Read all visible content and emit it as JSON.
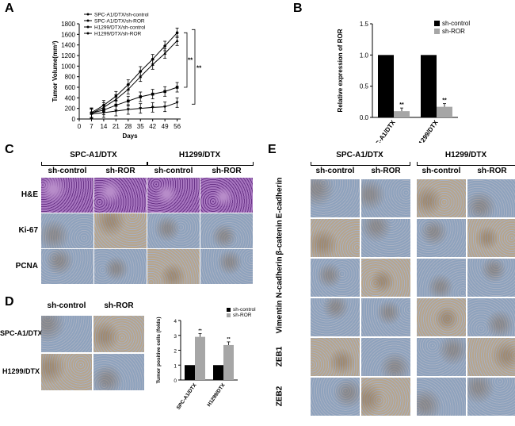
{
  "panels": {
    "A": {
      "label": "A",
      "chart_data": {
        "type": "line",
        "xlabel": "Days",
        "ylabel": "Tumor Volume(mm³)",
        "x": [
          7,
          14,
          21,
          28,
          35,
          42,
          49,
          56
        ],
        "xticks": [
          "0",
          "7",
          "14",
          "21",
          "28",
          "35",
          "42",
          "49",
          "56"
        ],
        "yticks": [
          "0",
          "200",
          "400",
          "600",
          "800",
          "1000",
          "1200",
          "1400",
          "1600",
          "1800"
        ],
        "xlim": [
          0,
          58
        ],
        "ylim": [
          0,
          1800
        ],
        "series": [
          {
            "name": "SPC-A1/DTX/sh-control",
            "values": [
              120,
              260,
              430,
              650,
              900,
              1130,
              1380,
              1630
            ]
          },
          {
            "name": "SPC-A1/DTX/sh-ROR",
            "values": [
              110,
              170,
              260,
              340,
              420,
              470,
              520,
              600
            ]
          },
          {
            "name": "H1299/DTX/sh-control",
            "values": [
              105,
              220,
              370,
              560,
              800,
              1030,
              1240,
              1480
            ]
          },
          {
            "name": "H1299/DTX/sh-ROR",
            "values": [
              95,
              120,
              150,
              180,
              200,
              220,
              230,
              310
            ]
          }
        ],
        "annotations": [
          "**",
          "**"
        ]
      }
    },
    "B": {
      "label": "B",
      "chart_data": {
        "type": "bar",
        "ylabel": "Relative expression of ROR",
        "categories": [
          "SPC-A1/DTX",
          "H1299/DTX"
        ],
        "yticks": [
          "0.0",
          "0.5",
          "1.0",
          "1.5"
        ],
        "ylim": [
          0,
          1.5
        ],
        "series": [
          {
            "name": "sh-control",
            "values": [
              1.0,
              1.0
            ],
            "color": "#000000"
          },
          {
            "name": "sh-ROR",
            "values": [
              0.1,
              0.17
            ],
            "color": "#a6a6a6"
          }
        ],
        "annotations": [
          "**",
          "**"
        ]
      }
    },
    "C": {
      "label": "C",
      "groups": [
        "SPC-A1/DTX",
        "H1299/DTX"
      ],
      "columns": [
        "sh-control",
        "sh-ROR",
        "sh-control",
        "sh-ROR"
      ],
      "rows": [
        "H&E",
        "Ki-67",
        "PCNA"
      ]
    },
    "D": {
      "label": "D",
      "columns": [
        "sh-control",
        "sh-ROR"
      ],
      "rows": [
        "SPC-A1/DTX",
        "H1299/DTX"
      ],
      "chart_data": {
        "type": "bar",
        "ylabel": "Tumor positive cells (folds)",
        "categories": [
          "SPC-A1/DTX",
          "H1299/DTX"
        ],
        "yticks": [
          "0",
          "1",
          "2",
          "3",
          "4"
        ],
        "ylim": [
          0,
          4
        ],
        "series": [
          {
            "name": "sh-control",
            "values": [
              1.0,
              1.0
            ],
            "color": "#000000"
          },
          {
            "name": "sh-ROR",
            "values": [
              2.9,
              2.35
            ],
            "color": "#a6a6a6"
          }
        ],
        "annotations": [
          "**",
          "**"
        ]
      }
    },
    "E": {
      "label": "E",
      "groups": [
        "SPC-A1/DTX",
        "H1299/DTX"
      ],
      "columns": [
        "sh-control",
        "sh-ROR",
        "sh-control",
        "sh-ROR"
      ],
      "rows": [
        "E-cadherin",
        "β-catenin",
        "N-cadherin",
        "Vimentin",
        "ZEB1",
        "ZEB2"
      ]
    }
  },
  "colors": {
    "he_stain": "#8a4fa8",
    "ihc_blue": "#8ea2bd",
    "ihc_brown": "#b7a58c",
    "bar_control": "#000000",
    "bar_ror": "#a6a6a6"
  }
}
